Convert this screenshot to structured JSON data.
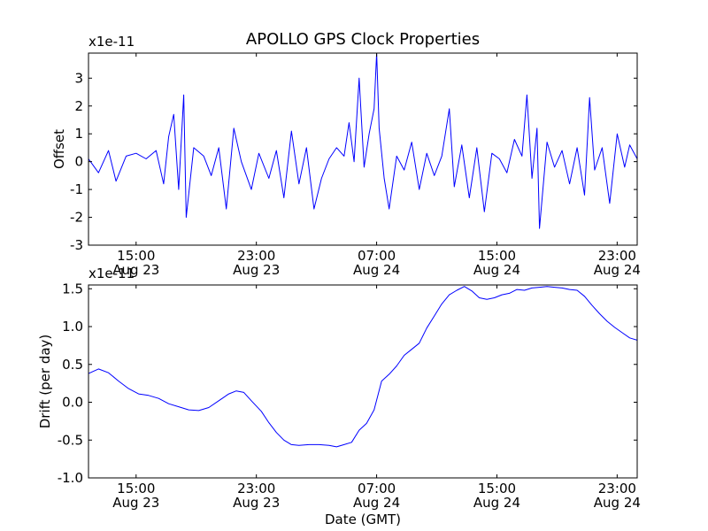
{
  "figure": {
    "title": "APOLLO GPS Clock Properties",
    "xlabel": "Date (GMT)"
  },
  "chart_data": [
    {
      "type": "line",
      "title": "APOLLO GPS Clock Properties",
      "ylabel": "Offset",
      "y_multiplier": "x1e-11",
      "xlabel": "",
      "xlim": [
        "2000-08-23 11:50",
        "2000-08-25 00:20"
      ],
      "ylim": [
        -3,
        3.9
      ],
      "yticks": [
        {
          "value": -3,
          "label": "-3"
        },
        {
          "value": -2,
          "label": "-2"
        },
        {
          "value": -1,
          "label": "-1"
        },
        {
          "value": 0,
          "label": "0"
        },
        {
          "value": 1,
          "label": "1"
        },
        {
          "value": 2,
          "label": "2"
        },
        {
          "value": 3,
          "label": "3"
        }
      ],
      "xticks": [
        {
          "time": "2000-08-23 15:00",
          "label1": "15:00",
          "label2": "Aug 23"
        },
        {
          "time": "2000-08-23 23:00",
          "label1": "23:00",
          "label2": "Aug 23"
        },
        {
          "time": "2000-08-24 07:00",
          "label1": "07:00",
          "label2": "Aug 24"
        },
        {
          "time": "2000-08-24 15:00",
          "label1": "15:00",
          "label2": "Aug 24"
        },
        {
          "time": "2000-08-24 23:00",
          "label1": "23:00",
          "label2": "Aug 24"
        }
      ],
      "grid": false,
      "series": [
        {
          "color": "#0000ff",
          "points": [
            [
              "2000-08-23 11:50",
              0.1
            ],
            [
              "2000-08-23 12:30",
              -0.4
            ],
            [
              "2000-08-23 13:10",
              0.4
            ],
            [
              "2000-08-23 13:40",
              -0.7
            ],
            [
              "2000-08-23 14:20",
              0.2
            ],
            [
              "2000-08-23 15:00",
              0.3
            ],
            [
              "2000-08-23 15:40",
              0.1
            ],
            [
              "2000-08-23 16:20",
              0.4
            ],
            [
              "2000-08-23 16:50",
              -0.8
            ],
            [
              "2000-08-23 17:10",
              0.9
            ],
            [
              "2000-08-23 17:30",
              1.7
            ],
            [
              "2000-08-23 17:50",
              -1.0
            ],
            [
              "2000-08-23 18:10",
              2.4
            ],
            [
              "2000-08-23 18:20",
              -2.0
            ],
            [
              "2000-08-23 18:50",
              0.5
            ],
            [
              "2000-08-23 19:30",
              0.2
            ],
            [
              "2000-08-23 20:00",
              -0.5
            ],
            [
              "2000-08-23 20:30",
              0.5
            ],
            [
              "2000-08-23 21:00",
              -1.7
            ],
            [
              "2000-08-23 21:30",
              1.2
            ],
            [
              "2000-08-23 22:00",
              0.0
            ],
            [
              "2000-08-23 22:40",
              -1.0
            ],
            [
              "2000-08-23 23:10",
              0.3
            ],
            [
              "2000-08-23 23:50",
              -0.6
            ],
            [
              "2000-08-24 00:20",
              0.4
            ],
            [
              "2000-08-24 00:50",
              -1.3
            ],
            [
              "2000-08-24 01:20",
              1.1
            ],
            [
              "2000-08-24 01:50",
              -0.8
            ],
            [
              "2000-08-24 02:20",
              0.5
            ],
            [
              "2000-08-24 02:50",
              -1.7
            ],
            [
              "2000-08-24 03:20",
              -0.6
            ],
            [
              "2000-08-24 03:50",
              0.1
            ],
            [
              "2000-08-24 04:20",
              0.5
            ],
            [
              "2000-08-24 04:50",
              0.2
            ],
            [
              "2000-08-24 05:10",
              1.4
            ],
            [
              "2000-08-24 05:30",
              0.0
            ],
            [
              "2000-08-24 05:50",
              3.0
            ],
            [
              "2000-08-24 06:10",
              -0.2
            ],
            [
              "2000-08-24 06:30",
              1.0
            ],
            [
              "2000-08-24 06:50",
              1.9
            ],
            [
              "2000-08-24 07:00",
              3.9
            ],
            [
              "2000-08-24 07:10",
              1.2
            ],
            [
              "2000-08-24 07:30",
              -0.6
            ],
            [
              "2000-08-24 07:50",
              -1.7
            ],
            [
              "2000-08-24 08:20",
              0.2
            ],
            [
              "2000-08-24 08:50",
              -0.3
            ],
            [
              "2000-08-24 09:20",
              0.7
            ],
            [
              "2000-08-24 09:50",
              -1.0
            ],
            [
              "2000-08-24 10:20",
              0.3
            ],
            [
              "2000-08-24 10:50",
              -0.5
            ],
            [
              "2000-08-24 11:20",
              0.2
            ],
            [
              "2000-08-24 11:50",
              1.9
            ],
            [
              "2000-08-24 12:10",
              -0.9
            ],
            [
              "2000-08-24 12:40",
              0.6
            ],
            [
              "2000-08-24 13:10",
              -1.3
            ],
            [
              "2000-08-24 13:40",
              0.5
            ],
            [
              "2000-08-24 14:10",
              -1.8
            ],
            [
              "2000-08-24 14:40",
              0.3
            ],
            [
              "2000-08-24 15:10",
              0.1
            ],
            [
              "2000-08-24 15:40",
              -0.4
            ],
            [
              "2000-08-24 16:10",
              0.8
            ],
            [
              "2000-08-24 16:40",
              0.2
            ],
            [
              "2000-08-24 17:00",
              2.4
            ],
            [
              "2000-08-24 17:20",
              -0.6
            ],
            [
              "2000-08-24 17:40",
              1.2
            ],
            [
              "2000-08-24 17:50",
              -2.4
            ],
            [
              "2000-08-24 18:20",
              0.7
            ],
            [
              "2000-08-24 18:50",
              -0.2
            ],
            [
              "2000-08-24 19:20",
              0.4
            ],
            [
              "2000-08-24 19:50",
              -0.8
            ],
            [
              "2000-08-24 20:20",
              0.5
            ],
            [
              "2000-08-24 20:50",
              -1.2
            ],
            [
              "2000-08-24 21:10",
              2.3
            ],
            [
              "2000-08-24 21:30",
              -0.3
            ],
            [
              "2000-08-24 22:00",
              0.5
            ],
            [
              "2000-08-24 22:30",
              -1.5
            ],
            [
              "2000-08-24 23:00",
              1.0
            ],
            [
              "2000-08-24 23:30",
              -0.2
            ],
            [
              "2000-08-24 23:50",
              0.6
            ],
            [
              "2000-08-25 00:20",
              0.1
            ]
          ]
        }
      ]
    },
    {
      "type": "line",
      "title": "",
      "ylabel": "Drift (per day)",
      "y_multiplier": "x1e-11",
      "xlabel": "Date (GMT)",
      "xlim": [
        "2000-08-23 11:50",
        "2000-08-25 00:20"
      ],
      "ylim": [
        -1.0,
        1.55
      ],
      "yticks": [
        {
          "value": -1.0,
          "label": "-1.0"
        },
        {
          "value": -0.5,
          "label": "-0.5"
        },
        {
          "value": 0.0,
          "label": "0.0"
        },
        {
          "value": 0.5,
          "label": "0.5"
        },
        {
          "value": 1.0,
          "label": "1.0"
        },
        {
          "value": 1.5,
          "label": "1.5"
        }
      ],
      "xticks": [
        {
          "time": "2000-08-23 15:00",
          "label1": "15:00",
          "label2": "Aug 23"
        },
        {
          "time": "2000-08-23 23:00",
          "label1": "23:00",
          "label2": "Aug 23"
        },
        {
          "time": "2000-08-24 07:00",
          "label1": "07:00",
          "label2": "Aug 24"
        },
        {
          "time": "2000-08-24 15:00",
          "label1": "15:00",
          "label2": "Aug 24"
        },
        {
          "time": "2000-08-24 23:00",
          "label1": "23:00",
          "label2": "Aug 24"
        }
      ],
      "grid": false,
      "series": [
        {
          "color": "#0000ff",
          "points": [
            [
              "2000-08-23 11:50",
              0.38
            ],
            [
              "2000-08-23 12:30",
              0.44
            ],
            [
              "2000-08-23 13:10",
              0.39
            ],
            [
              "2000-08-23 13:50",
              0.28
            ],
            [
              "2000-08-23 14:30",
              0.18
            ],
            [
              "2000-08-23 15:10",
              0.11
            ],
            [
              "2000-08-23 15:50",
              0.09
            ],
            [
              "2000-08-23 16:30",
              0.05
            ],
            [
              "2000-08-23 17:10",
              -0.02
            ],
            [
              "2000-08-23 17:50",
              -0.06
            ],
            [
              "2000-08-23 18:30",
              -0.1
            ],
            [
              "2000-08-23 19:10",
              -0.11
            ],
            [
              "2000-08-23 19:50",
              -0.07
            ],
            [
              "2000-08-23 20:30",
              0.02
            ],
            [
              "2000-08-23 21:10",
              0.11
            ],
            [
              "2000-08-23 21:40",
              0.15
            ],
            [
              "2000-08-23 22:10",
              0.13
            ],
            [
              "2000-08-23 22:40",
              0.02
            ],
            [
              "2000-08-23 23:20",
              -0.12
            ],
            [
              "2000-08-23 23:50",
              -0.27
            ],
            [
              "2000-08-24 00:20",
              -0.4
            ],
            [
              "2000-08-24 00:50",
              -0.5
            ],
            [
              "2000-08-24 01:20",
              -0.56
            ],
            [
              "2000-08-24 01:50",
              -0.57
            ],
            [
              "2000-08-24 02:30",
              -0.56
            ],
            [
              "2000-08-24 03:10",
              -0.56
            ],
            [
              "2000-08-24 03:50",
              -0.57
            ],
            [
              "2000-08-24 04:20",
              -0.59
            ],
            [
              "2000-08-24 04:50",
              -0.56
            ],
            [
              "2000-08-24 05:20",
              -0.53
            ],
            [
              "2000-08-24 05:50",
              -0.37
            ],
            [
              "2000-08-24 06:20",
              -0.28
            ],
            [
              "2000-08-24 06:50",
              -0.1
            ],
            [
              "2000-08-24 07:20",
              0.28
            ],
            [
              "2000-08-24 07:50",
              0.37
            ],
            [
              "2000-08-24 08:20",
              0.48
            ],
            [
              "2000-08-24 08:50",
              0.62
            ],
            [
              "2000-08-24 09:20",
              0.7
            ],
            [
              "2000-08-24 09:50",
              0.78
            ],
            [
              "2000-08-24 10:20",
              0.98
            ],
            [
              "2000-08-24 10:50",
              1.14
            ],
            [
              "2000-08-24 11:20",
              1.3
            ],
            [
              "2000-08-24 11:50",
              1.42
            ],
            [
              "2000-08-24 12:20",
              1.48
            ],
            [
              "2000-08-24 12:50",
              1.53
            ],
            [
              "2000-08-24 13:20",
              1.47
            ],
            [
              "2000-08-24 13:50",
              1.38
            ],
            [
              "2000-08-24 14:20",
              1.36
            ],
            [
              "2000-08-24 14:50",
              1.38
            ],
            [
              "2000-08-24 15:20",
              1.42
            ],
            [
              "2000-08-24 15:50",
              1.44
            ],
            [
              "2000-08-24 16:20",
              1.49
            ],
            [
              "2000-08-24 16:50",
              1.48
            ],
            [
              "2000-08-24 17:20",
              1.51
            ],
            [
              "2000-08-24 17:50",
              1.52
            ],
            [
              "2000-08-24 18:20",
              1.53
            ],
            [
              "2000-08-24 18:50",
              1.52
            ],
            [
              "2000-08-24 19:20",
              1.51
            ],
            [
              "2000-08-24 19:50",
              1.49
            ],
            [
              "2000-08-24 20:20",
              1.48
            ],
            [
              "2000-08-24 20:50",
              1.4
            ],
            [
              "2000-08-24 21:20",
              1.28
            ],
            [
              "2000-08-24 21:50",
              1.17
            ],
            [
              "2000-08-24 22:20",
              1.07
            ],
            [
              "2000-08-24 22:50",
              0.99
            ],
            [
              "2000-08-24 23:20",
              0.92
            ],
            [
              "2000-08-24 23:50",
              0.85
            ],
            [
              "2000-08-25 00:20",
              0.82
            ]
          ]
        }
      ]
    }
  ]
}
